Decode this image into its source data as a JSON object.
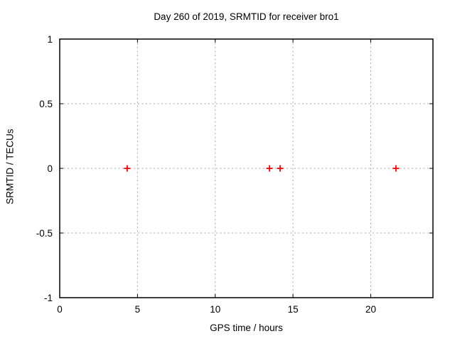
{
  "chart_data": {
    "type": "scatter",
    "title": "Day 260 of 2019, SRMTID for receiver bro1",
    "xlabel": "GPS time / hours",
    "ylabel": "SRMTID / TECUs",
    "xlim": [
      0,
      24
    ],
    "ylim": [
      -1,
      1
    ],
    "xticks": [
      0,
      5,
      10,
      15,
      20
    ],
    "yticks": [
      -1,
      -0.5,
      0,
      0.5,
      1
    ],
    "grid": true,
    "legend": "none",
    "marker": "plus",
    "marker_color": "#ff0000",
    "grid_color": "#a6a6a6",
    "border_color": "#000000",
    "background": "#ffffff",
    "points": [
      {
        "x": 4.34,
        "y": 0.0
      },
      {
        "x": 13.49,
        "y": 0.0
      },
      {
        "x": 14.17,
        "y": 0.0
      },
      {
        "x": 21.62,
        "y": 0.0
      }
    ]
  }
}
